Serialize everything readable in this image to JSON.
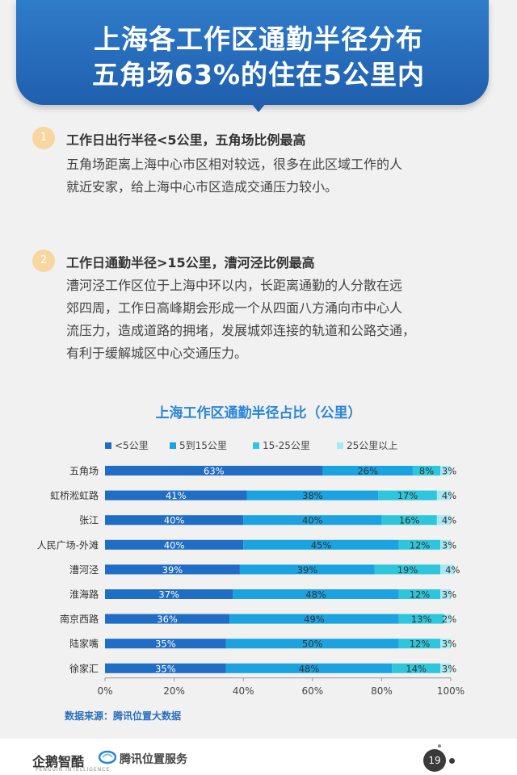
{
  "header": {
    "title_line1": "上海各工作区通勤半径分布",
    "title_line2": "五角场63%的住在5公里内"
  },
  "sections": [
    {
      "number": "1",
      "title": "工作日出行半径<5公里，五角场比例最高",
      "body": [
        "五角场距离上海中心市区相对较远，很多在此区域工作的人",
        "就近安家，给上海中心市区造成交通压力较小。"
      ]
    },
    {
      "number": "2",
      "title": "工作日通勤半径>15公里，漕河泾比例最高",
      "body": [
        "漕河泾工作区位于上海中环以内，长距离通勤的人分散在远",
        "郊四周，工作日高峰期会形成一个从四面八方涌向市中心人",
        "流压力，造成道路的拥堵，发展城郊连接的轨道和公路交通，",
        "有利于缓解城区中心交通压力。"
      ]
    }
  ],
  "chart_data": {
    "type": "bar",
    "orientation": "horizontal",
    "stacked": true,
    "title": "上海工作区通勤半径占比（公里）",
    "categories": [
      "五角场",
      "虹桥淞虹路",
      "张江",
      "人民广场-外滩",
      "漕河泾",
      "淮海路",
      "南京西路",
      "陆家嘴",
      "徐家汇"
    ],
    "series": [
      {
        "name": "<5公里",
        "color": "#1f6dc4",
        "values": [
          63,
          41,
          40,
          40,
          39,
          37,
          36,
          35,
          35
        ]
      },
      {
        "name": "5到15公里",
        "color": "#1aa3e0",
        "values": [
          26,
          38,
          40,
          45,
          39,
          48,
          49,
          50,
          48
        ]
      },
      {
        "name": "15-25公里",
        "color": "#2ec6dc",
        "values": [
          8,
          17,
          16,
          12,
          19,
          12,
          13,
          12,
          14
        ]
      },
      {
        "name": "25公里以上",
        "color": "#a6e9f2",
        "values": [
          3,
          4,
          4,
          3,
          4,
          3,
          2,
          3,
          3
        ]
      }
    ],
    "xlim": [
      0,
      100
    ],
    "xticks": [
      "0%",
      "20%",
      "40%",
      "60%",
      "80%",
      "100%"
    ],
    "grid": false,
    "legend_position": "top"
  },
  "source": "数据来源：腾讯位置大数据",
  "footer": {
    "logo1": "企鹅智酷",
    "logo1_sub": "PENGUIN INTELLIGENCE",
    "logo2": "腾讯位置服务",
    "page": "19"
  }
}
